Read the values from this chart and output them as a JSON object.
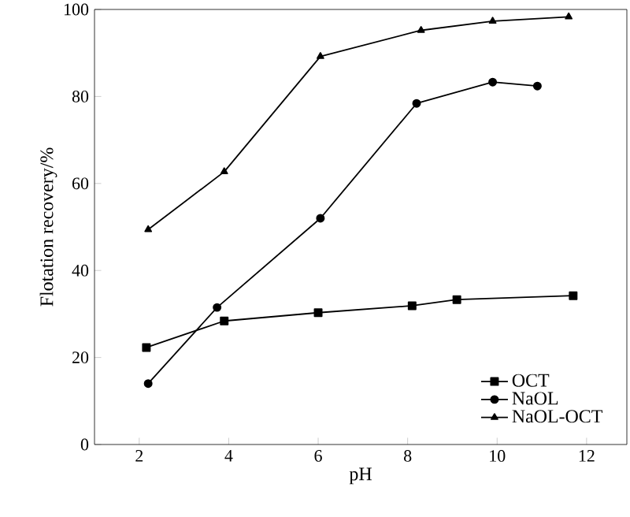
{
  "chart_data": {
    "type": "line",
    "xlabel": "pH",
    "ylabel": "Flotation recovery/%",
    "xlim": [
      1,
      12.9
    ],
    "ylim": [
      0,
      100
    ],
    "xticks": [
      2,
      4,
      6,
      8,
      10,
      12
    ],
    "yticks": [
      0,
      20,
      40,
      60,
      80,
      100
    ],
    "legend": "bottom right",
    "grid": false,
    "series": [
      {
        "name": "OCT",
        "color": "#000000",
        "marker": "square",
        "x": [
          2.16,
          3.9,
          6.0,
          8.1,
          9.1,
          11.7
        ],
        "values": [
          22.3,
          28.4,
          30.3,
          31.9,
          33.3,
          34.2
        ]
      },
      {
        "name": "NaOL",
        "color": "#000000",
        "marker": "circle",
        "x": [
          2.2,
          3.74,
          6.05,
          8.2,
          9.9,
          10.9
        ],
        "values": [
          14.0,
          31.5,
          52,
          78.4,
          83.3,
          82.4
        ]
      },
      {
        "name": "NaOL-OCT",
        "color": "#000000",
        "marker": "triangle",
        "x": [
          2.2,
          3.9,
          6.05,
          8.3,
          9.9,
          11.6
        ],
        "values": [
          49.4,
          62.7,
          89.2,
          95.2,
          97.3,
          98.3
        ]
      }
    ]
  }
}
